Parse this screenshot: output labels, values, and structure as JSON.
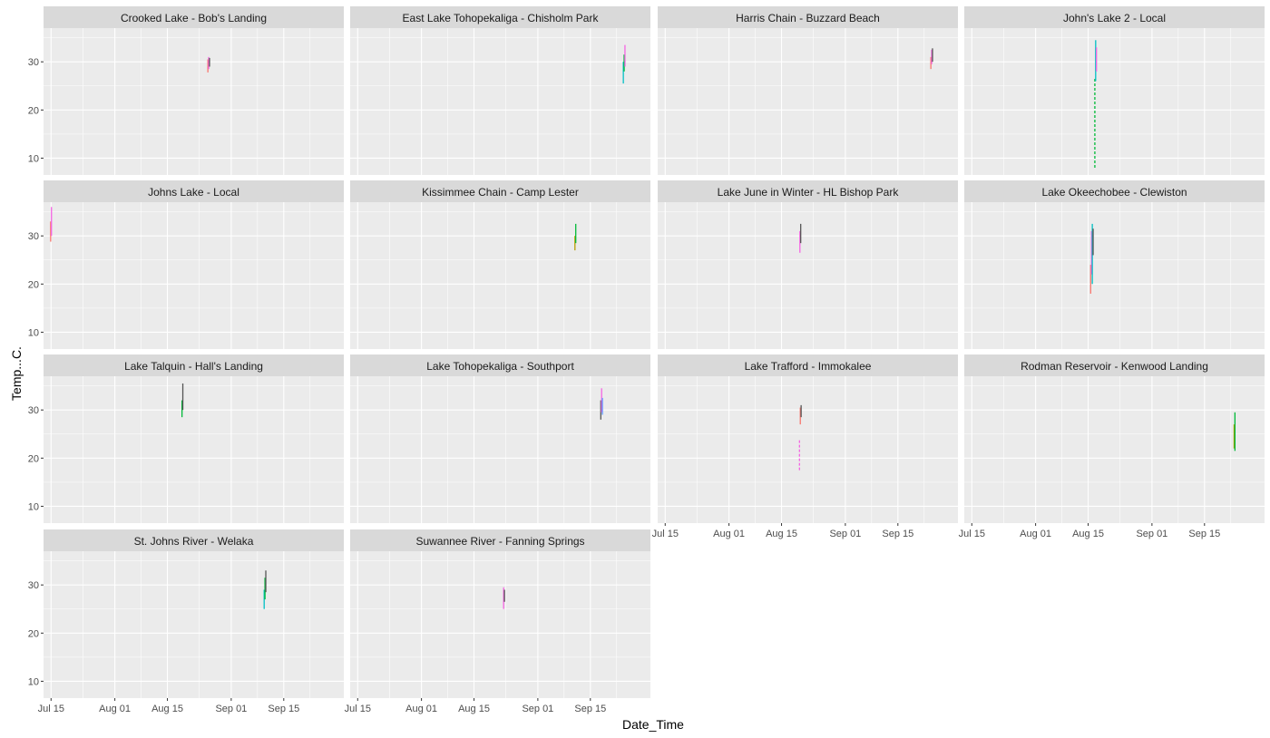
{
  "chart_data": {
    "type": "line",
    "xlabel": "Date_Time",
    "ylabel": "Temp...C.",
    "x_range": [
      "2022-07-13",
      "2022-10-01"
    ],
    "y_range": [
      6.5,
      37
    ],
    "x_ticks": [
      {
        "date": "2022-07-15",
        "label": "Jul 15"
      },
      {
        "date": "2022-08-01",
        "label": "Aug 01"
      },
      {
        "date": "2022-08-15",
        "label": "Aug 15"
      },
      {
        "date": "2022-09-01",
        "label": "Sep 01"
      },
      {
        "date": "2022-09-15",
        "label": "Sep 15"
      }
    ],
    "y_ticks": [
      10,
      20,
      30
    ],
    "grid": true,
    "series_colors": [
      "#F8766D",
      "#B79F00",
      "#00BA38",
      "#00BFC4",
      "#619CFF",
      "#F564E3",
      "#555555"
    ],
    "panels": [
      {
        "title": "Crooked Lake - Bob's Landing",
        "date": "2022-08-26",
        "series": [
          {
            "color": 0,
            "y": [
              27.8,
              30.5
            ]
          },
          {
            "color": 5,
            "y": [
              28.5,
              31.0
            ]
          },
          {
            "color": 6,
            "y": [
              29.0,
              30.8
            ]
          }
        ]
      },
      {
        "title": "East Lake Tohopekaliga - Chisholm Park",
        "date": "2022-09-24",
        "series": [
          {
            "color": 3,
            "y": [
              25.5,
              30.0
            ]
          },
          {
            "color": 2,
            "y": [
              28.0,
              31.5
            ]
          },
          {
            "color": 5,
            "y": [
              29.0,
              33.5
            ]
          }
        ]
      },
      {
        "title": "Harris Chain - Buzzard Beach",
        "date": "2022-09-24",
        "series": [
          {
            "color": 0,
            "y": [
              28.5,
              31.0
            ]
          },
          {
            "color": 5,
            "y": [
              29.5,
              32.5
            ]
          },
          {
            "color": 6,
            "y": [
              30.0,
              32.8
            ]
          }
        ]
      },
      {
        "title": "John's Lake 2 - Local",
        "date": "2022-08-17",
        "series": [
          {
            "color": 2,
            "y": [
              8.0,
              26.5
            ]
          },
          {
            "color": 3,
            "y": [
              26.0,
              34.5
            ]
          },
          {
            "color": 5,
            "y": [
              28.0,
              33.0
            ]
          }
        ]
      },
      {
        "title": "Johns Lake - Local",
        "date": "2022-07-15",
        "series": [
          {
            "color": 0,
            "y": [
              28.8,
              33.0
            ]
          },
          {
            "color": 5,
            "y": [
              30.0,
              36.0
            ]
          }
        ]
      },
      {
        "title": "Kissimmee Chain - Camp Lester",
        "date": "2022-09-11",
        "series": [
          {
            "color": 1,
            "y": [
              27.0,
              30.0
            ]
          },
          {
            "color": 2,
            "y": [
              28.5,
              32.5
            ]
          }
        ]
      },
      {
        "title": "Lake June in Winter - HL Bishop Park",
        "date": "2022-08-20",
        "series": [
          {
            "color": 5,
            "y": [
              26.5,
              31.0
            ]
          },
          {
            "color": 6,
            "y": [
              28.5,
              32.5
            ]
          }
        ]
      },
      {
        "title": "Lake Okeechobee - Clewiston",
        "date": "2022-08-16",
        "series": [
          {
            "color": 0,
            "y": [
              18.0,
              24.0
            ]
          },
          {
            "color": 5,
            "y": [
              22.0,
              31.0
            ]
          },
          {
            "color": 3,
            "y": [
              20.0,
              32.5
            ]
          },
          {
            "color": 6,
            "y": [
              26.0,
              31.5
            ]
          }
        ]
      },
      {
        "title": "Lake Talquin - Hall's Landing",
        "date": "2022-08-19",
        "series": [
          {
            "color": 2,
            "y": [
              28.5,
              32.0
            ]
          },
          {
            "color": 6,
            "y": [
              30.0,
              35.5
            ]
          }
        ]
      },
      {
        "title": "Lake Tohopekaliga - Southport",
        "date": "2022-09-18",
        "series": [
          {
            "color": 6,
            "y": [
              28.0,
              32.0
            ]
          },
          {
            "color": 5,
            "y": [
              29.5,
              34.5
            ]
          },
          {
            "color": 4,
            "y": [
              29.0,
              32.5
            ]
          }
        ]
      },
      {
        "title": "Lake Trafford - Immokalee",
        "date": "2022-08-20",
        "series": [
          {
            "color": 5,
            "y": [
              17.5,
              24.0
            ]
          },
          {
            "color": 0,
            "y": [
              27.0,
              30.5
            ]
          },
          {
            "color": 6,
            "y": [
              28.5,
              31.0
            ]
          }
        ]
      },
      {
        "title": "Rodman Reservoir - Kenwood Landing",
        "date": "2022-09-23",
        "series": [
          {
            "color": 1,
            "y": [
              22.0,
              27.0
            ]
          },
          {
            "color": 2,
            "y": [
              21.5,
              29.5
            ]
          }
        ]
      },
      {
        "title": "St. Johns River - Welaka",
        "date": "2022-09-10",
        "series": [
          {
            "color": 3,
            "y": [
              25.0,
              29.0
            ]
          },
          {
            "color": 2,
            "y": [
              27.0,
              31.5
            ]
          },
          {
            "color": 6,
            "y": [
              28.5,
              33.0
            ]
          }
        ]
      },
      {
        "title": "Suwannee River - Fanning Springs",
        "date": "2022-08-23",
        "series": [
          {
            "color": 5,
            "y": [
              25.0,
              29.5
            ]
          },
          {
            "color": 6,
            "y": [
              26.5,
              29.0
            ]
          }
        ]
      }
    ]
  }
}
